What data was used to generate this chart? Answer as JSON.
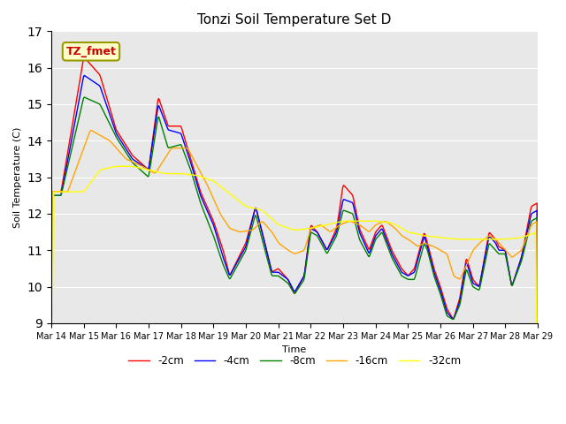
{
  "title": "Tonzi Soil Temperature Set D",
  "xlabel": "Time",
  "ylabel": "Soil Temperature (C)",
  "ylim": [
    9.0,
    17.0
  ],
  "yticks": [
    9.0,
    10.0,
    11.0,
    12.0,
    13.0,
    14.0,
    15.0,
    16.0,
    17.0
  ],
  "xtick_labels": [
    "Mar 14",
    "Mar 15",
    "Mar 16",
    "Mar 17",
    "Mar 18",
    "Mar 19",
    "Mar 20",
    "Mar 21",
    "Mar 22",
    "Mar 23",
    "Mar 24",
    "Mar 25",
    "Mar 26",
    "Mar 27",
    "Mar 28",
    "Mar 29"
  ],
  "series_colors": [
    "red",
    "blue",
    "green",
    "orange",
    "yellow"
  ],
  "series_labels": [
    "-2cm",
    "-4cm",
    "-8cm",
    "-16cm",
    "-32cm"
  ],
  "annotation_text": "TZ_fmet",
  "annotation_color": "#cc0000",
  "annotation_bg": "#ffffcc",
  "annotation_border": "#999900",
  "plot_bg": "#e8e8e8",
  "linewidth": 1.0,
  "title_fontsize": 11
}
